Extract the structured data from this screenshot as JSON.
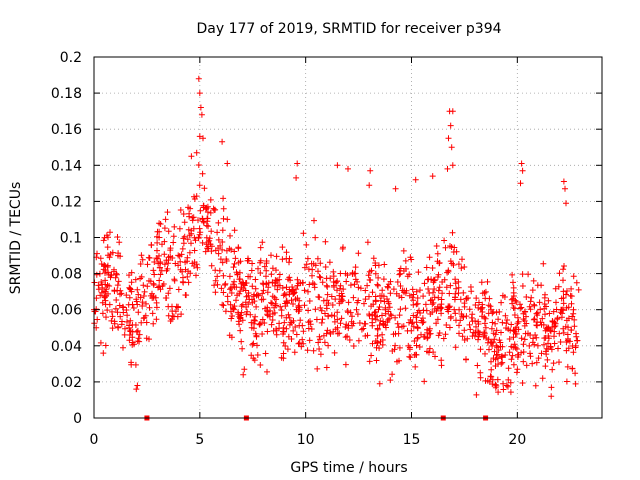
{
  "chart_data": {
    "type": "scatter",
    "title": "Day 177 of 2019, SRMTID for receiver p394",
    "xlabel": "GPS time / hours",
    "ylabel": "SRMTID / TECUs",
    "xlim": [
      0,
      24
    ],
    "ylim": [
      0,
      0.2
    ],
    "xticks": [
      0,
      5,
      10,
      15,
      20
    ],
    "xtick_labels": [
      "0",
      "5",
      "10",
      "15",
      "20"
    ],
    "yticks": [
      0,
      0.02,
      0.04,
      0.06,
      0.08,
      0.1,
      0.12,
      0.14,
      0.16,
      0.18,
      0.2
    ],
    "ytick_labels": [
      "0",
      "0.02",
      "0.04",
      "0.06",
      "0.08",
      "0.1",
      "0.12",
      "0.14",
      "0.16",
      "0.18",
      "0.2"
    ],
    "grid": true,
    "marker": "+",
    "color": "#ff0000",
    "zero_markers_x": [
      2.5,
      7.2,
      16.5,
      18.5
    ],
    "trend": [
      {
        "x": 0.0,
        "y": 0.068
      },
      {
        "x": 0.5,
        "y": 0.072
      },
      {
        "x": 1.0,
        "y": 0.07
      },
      {
        "x": 1.5,
        "y": 0.058
      },
      {
        "x": 2.0,
        "y": 0.052
      },
      {
        "x": 2.5,
        "y": 0.07
      },
      {
        "x": 3.0,
        "y": 0.082
      },
      {
        "x": 3.5,
        "y": 0.088
      },
      {
        "x": 4.0,
        "y": 0.078
      },
      {
        "x": 4.5,
        "y": 0.095
      },
      {
        "x": 5.0,
        "y": 0.112
      },
      {
        "x": 5.5,
        "y": 0.1
      },
      {
        "x": 6.0,
        "y": 0.09
      },
      {
        "x": 6.5,
        "y": 0.075
      },
      {
        "x": 7.0,
        "y": 0.065
      },
      {
        "x": 7.5,
        "y": 0.062
      },
      {
        "x": 8.0,
        "y": 0.068
      },
      {
        "x": 8.5,
        "y": 0.07
      },
      {
        "x": 9.0,
        "y": 0.062
      },
      {
        "x": 9.5,
        "y": 0.06
      },
      {
        "x": 10.0,
        "y": 0.07
      },
      {
        "x": 10.5,
        "y": 0.068
      },
      {
        "x": 11.0,
        "y": 0.062
      },
      {
        "x": 11.5,
        "y": 0.066
      },
      {
        "x": 12.0,
        "y": 0.06
      },
      {
        "x": 12.5,
        "y": 0.064
      },
      {
        "x": 13.0,
        "y": 0.062
      },
      {
        "x": 13.5,
        "y": 0.058
      },
      {
        "x": 14.0,
        "y": 0.06
      },
      {
        "x": 14.5,
        "y": 0.062
      },
      {
        "x": 15.0,
        "y": 0.058
      },
      {
        "x": 15.5,
        "y": 0.055
      },
      {
        "x": 16.0,
        "y": 0.062
      },
      {
        "x": 16.5,
        "y": 0.07
      },
      {
        "x": 17.0,
        "y": 0.075
      },
      {
        "x": 17.5,
        "y": 0.058
      },
      {
        "x": 18.0,
        "y": 0.052
      },
      {
        "x": 18.5,
        "y": 0.048
      },
      {
        "x": 19.0,
        "y": 0.04
      },
      {
        "x": 19.5,
        "y": 0.042
      },
      {
        "x": 20.0,
        "y": 0.05
      },
      {
        "x": 20.5,
        "y": 0.056
      },
      {
        "x": 21.0,
        "y": 0.05
      },
      {
        "x": 21.5,
        "y": 0.048
      },
      {
        "x": 22.0,
        "y": 0.055
      },
      {
        "x": 22.5,
        "y": 0.055
      },
      {
        "x": 22.9,
        "y": 0.05
      }
    ],
    "outliers": [
      {
        "x": 4.95,
        "y": 0.188
      },
      {
        "x": 5.0,
        "y": 0.18
      },
      {
        "x": 5.05,
        "y": 0.172
      },
      {
        "x": 5.1,
        "y": 0.168
      },
      {
        "x": 5.0,
        "y": 0.156
      },
      {
        "x": 5.15,
        "y": 0.155
      },
      {
        "x": 4.85,
        "y": 0.147
      },
      {
        "x": 4.6,
        "y": 0.145
      },
      {
        "x": 6.05,
        "y": 0.153
      },
      {
        "x": 6.3,
        "y": 0.141
      },
      {
        "x": 9.6,
        "y": 0.141
      },
      {
        "x": 9.55,
        "y": 0.133
      },
      {
        "x": 11.5,
        "y": 0.14
      },
      {
        "x": 12.0,
        "y": 0.138
      },
      {
        "x": 13.05,
        "y": 0.137
      },
      {
        "x": 13.0,
        "y": 0.129
      },
      {
        "x": 14.25,
        "y": 0.127
      },
      {
        "x": 15.2,
        "y": 0.132
      },
      {
        "x": 16.0,
        "y": 0.134
      },
      {
        "x": 16.8,
        "y": 0.17
      },
      {
        "x": 16.95,
        "y": 0.17
      },
      {
        "x": 16.85,
        "y": 0.162
      },
      {
        "x": 16.75,
        "y": 0.155
      },
      {
        "x": 16.9,
        "y": 0.15
      },
      {
        "x": 16.7,
        "y": 0.138
      },
      {
        "x": 16.95,
        "y": 0.14
      },
      {
        "x": 20.2,
        "y": 0.141
      },
      {
        "x": 20.25,
        "y": 0.137
      },
      {
        "x": 20.15,
        "y": 0.13
      },
      {
        "x": 22.2,
        "y": 0.131
      },
      {
        "x": 22.25,
        "y": 0.127
      },
      {
        "x": 22.3,
        "y": 0.119
      },
      {
        "x": 2.0,
        "y": 0.016
      },
      {
        "x": 2.05,
        "y": 0.018
      },
      {
        "x": 7.05,
        "y": 0.024
      },
      {
        "x": 7.1,
        "y": 0.027
      },
      {
        "x": 11.0,
        "y": 0.028
      },
      {
        "x": 14.0,
        "y": 0.021
      },
      {
        "x": 18.7,
        "y": 0.02
      },
      {
        "x": 19.5,
        "y": 0.018
      },
      {
        "x": 21.6,
        "y": 0.012
      },
      {
        "x": 21.2,
        "y": 0.022
      }
    ],
    "n_points": 1500,
    "noise_scale": 0.015
  }
}
